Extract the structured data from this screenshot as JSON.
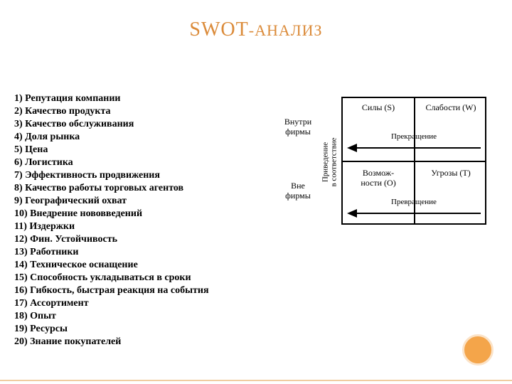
{
  "title_main": "SWOT",
  "title_dash": "-",
  "title_suffix": "АНАЛИЗ",
  "accent_color": "#db8b3a",
  "circle_fill": "#f4a54a",
  "circle_border": "#fbe3c8",
  "list": {
    "items": [
      "1) Репутация компании",
      "2) Качество продукта",
      "3) Качество обслуживания",
      "4) Доля рынка",
      "5) Цена",
      "6) Логистика",
      "7) Эффективность продвижения",
      "8) Качество работы торговых агентов",
      "9) Географический охват",
      "10) Внедрение нововведений",
      "11) Издержки",
      "12) Фин. Устойчивость",
      "13) Работники",
      "14) Техническое оснащение",
      "15) Способность укладываться в сроки",
      "16) Гибкость, быстрая реакция на события",
      "17) Ассортимент",
      "18) Опыт",
      "19) Ресурсы",
      "20) Знание покупателей"
    ]
  },
  "diagram": {
    "type": "swot-matrix",
    "row_labels": {
      "inside": "Внутри фирмы",
      "outside": "Вне фирмы"
    },
    "vertical_label_line1": "Приведение",
    "vertical_label_line2": "в соответствие",
    "cells": {
      "tl": "Силы (S)",
      "tr": "Слабости (W)",
      "bl_line1": "Возмож-",
      "bl_line2": "ности (O)",
      "br": "Угрозы (T)"
    },
    "arrows": {
      "top_label": "Прекращение",
      "bottom_label": "Превращение"
    },
    "border_color": "#000000",
    "text_fontsize": 12
  }
}
